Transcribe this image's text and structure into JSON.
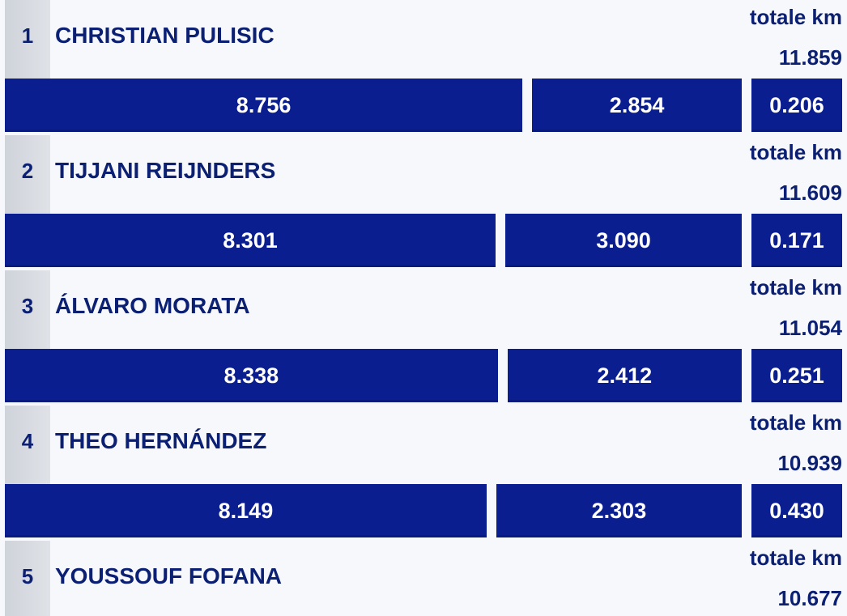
{
  "colors": {
    "bar": "#0a1e8f",
    "text": "#0b1f73",
    "background": "#f7f8fb",
    "rank_strip": "#d5d8de"
  },
  "chart_data": {
    "type": "bar",
    "orientation": "horizontal-stacked",
    "total_label": "totale km",
    "rows": [
      {
        "rank": "1",
        "name": "CHRISTIAN PULISIC",
        "total": "11.859",
        "segments": [
          8.756,
          2.854,
          0.206
        ],
        "segment_labels": [
          "8.756",
          "2.854",
          "0.206"
        ]
      },
      {
        "rank": "2",
        "name": "TIJJANI REIJNDERS",
        "total": "11.609",
        "segments": [
          8.301,
          3.09,
          0.171
        ],
        "segment_labels": [
          "8.301",
          "3.090",
          "0.171"
        ]
      },
      {
        "rank": "3",
        "name": "ÁLVARO MORATA",
        "total": "11.054",
        "segments": [
          8.338,
          2.412,
          0.251
        ],
        "segment_labels": [
          "8.338",
          "2.412",
          "0.251"
        ]
      },
      {
        "rank": "4",
        "name": "THEO HERNÁNDEZ",
        "total": "10.939",
        "segments": [
          8.149,
          2.303,
          0.43
        ],
        "segment_labels": [
          "8.149",
          "2.303",
          "0.430"
        ]
      },
      {
        "rank": "5",
        "name": "YOUSSOUF FOFANA",
        "total": "10.677",
        "segments": [],
        "segment_labels": []
      }
    ]
  }
}
